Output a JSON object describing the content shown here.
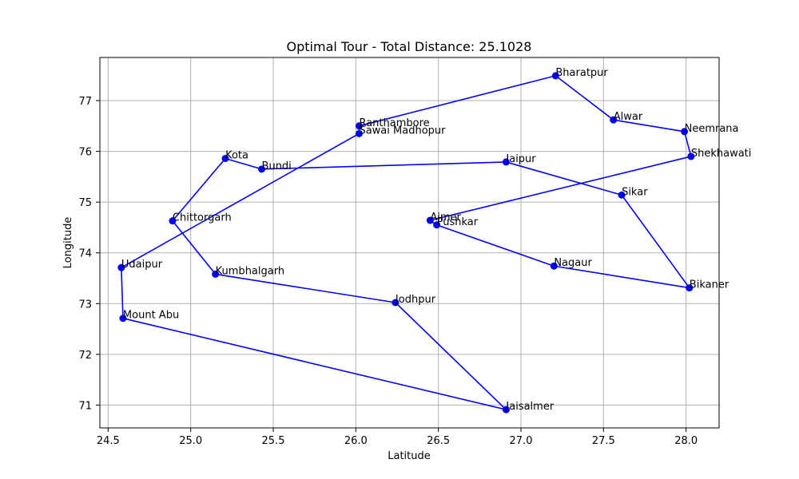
{
  "chart_data": {
    "type": "line",
    "title": "Optimal Tour - Total Distance: 25.1028",
    "xlabel": "Latitude",
    "ylabel": "Longitude",
    "xlim": [
      24.45,
      28.2
    ],
    "ylim": [
      70.55,
      77.85
    ],
    "xticks": [
      "24.5",
      "25.0",
      "25.5",
      "26.0",
      "26.5",
      "27.0",
      "27.5",
      "28.0"
    ],
    "xtick_values": [
      24.5,
      25.0,
      25.5,
      26.0,
      26.5,
      27.0,
      27.5,
      28.0
    ],
    "yticks": [
      "71",
      "72",
      "73",
      "74",
      "75",
      "76",
      "77"
    ],
    "ytick_values": [
      71,
      72,
      73,
      74,
      75,
      76,
      77
    ],
    "grid": true,
    "line_color": "#0000ff",
    "marker_color": "#0000ff",
    "cities": [
      {
        "name": "Bharatpur",
        "x": 27.21,
        "y": 77.49
      },
      {
        "name": "Alwar",
        "x": 27.56,
        "y": 76.62
      },
      {
        "name": "Neemrana",
        "x": 27.99,
        "y": 76.39
      },
      {
        "name": "Shekhawati",
        "x": 28.03,
        "y": 75.9
      },
      {
        "name": "Ajmer",
        "x": 26.45,
        "y": 74.64
      },
      {
        "name": "Pushkar",
        "x": 26.49,
        "y": 74.55
      },
      {
        "name": "Nagaur",
        "x": 27.2,
        "y": 73.74
      },
      {
        "name": "Bikaner",
        "x": 28.02,
        "y": 73.31
      },
      {
        "name": "Sikar",
        "x": 27.61,
        "y": 75.14
      },
      {
        "name": "Jaipur",
        "x": 26.91,
        "y": 75.79
      },
      {
        "name": "Bundi",
        "x": 25.43,
        "y": 75.65
      },
      {
        "name": "Kota",
        "x": 25.21,
        "y": 75.86
      },
      {
        "name": "Chittorgarh",
        "x": 24.89,
        "y": 74.63
      },
      {
        "name": "Kumbhalgarh",
        "x": 25.15,
        "y": 73.58
      },
      {
        "name": "Jodhpur",
        "x": 26.24,
        "y": 73.02
      },
      {
        "name": "Jaisalmer",
        "x": 26.91,
        "y": 70.91
      },
      {
        "name": "Mount Abu",
        "x": 24.59,
        "y": 72.71
      },
      {
        "name": "Udaipur",
        "x": 24.58,
        "y": 73.71
      },
      {
        "name": "Sawai Madhopur",
        "x": 26.02,
        "y": 76.35
      },
      {
        "name": "Ranthambore",
        "x": 26.02,
        "y": 76.5
      }
    ],
    "tour_closed": true
  }
}
